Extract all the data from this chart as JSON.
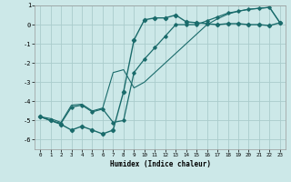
{
  "xlabel": "Humidex (Indice chaleur)",
  "bg_color": "#cce8e8",
  "grid_color": "#aacccc",
  "line_color": "#1a6b6b",
  "xlim": [
    -0.5,
    23.5
  ],
  "ylim": [
    -6.5,
    1.0
  ],
  "yticks": [
    1,
    0,
    -1,
    -2,
    -3,
    -4,
    -5,
    -6
  ],
  "xticks": [
    0,
    1,
    2,
    3,
    4,
    5,
    6,
    7,
    8,
    9,
    10,
    11,
    12,
    13,
    14,
    15,
    16,
    17,
    18,
    19,
    20,
    21,
    22,
    23
  ],
  "series1_x": [
    0,
    1,
    2,
    3,
    4,
    5,
    6,
    7,
    8,
    9,
    10,
    11,
    12,
    13,
    14,
    15,
    16,
    17,
    18,
    19,
    20,
    21,
    22,
    23
  ],
  "series1_y": [
    -4.8,
    -5.0,
    -5.2,
    -5.5,
    -5.3,
    -5.5,
    -5.7,
    -5.5,
    -3.5,
    -0.8,
    0.25,
    0.35,
    0.35,
    0.5,
    0.15,
    0.1,
    0.05,
    0.0,
    0.05,
    0.05,
    0.0,
    0.0,
    -0.05,
    0.1
  ],
  "series2_x": [
    0,
    1,
    2,
    3,
    4,
    5,
    6,
    7,
    8,
    9,
    10,
    11,
    12,
    13,
    14,
    15,
    16,
    17,
    18,
    19,
    20,
    21,
    22,
    23
  ],
  "series2_y": [
    -4.8,
    -5.0,
    -5.15,
    -4.3,
    -4.2,
    -4.55,
    -4.4,
    -5.1,
    -5.0,
    -2.5,
    -1.8,
    -1.2,
    -0.6,
    0.0,
    0.0,
    0.0,
    0.2,
    0.4,
    0.6,
    0.7,
    0.8,
    0.85,
    0.9,
    0.1
  ],
  "series3_x": [
    0,
    1,
    2,
    3,
    4,
    5,
    6,
    7,
    8,
    9,
    10,
    11,
    12,
    13,
    14,
    15,
    16,
    17,
    18,
    19,
    20,
    21,
    22,
    23
  ],
  "series3_y": [
    -4.8,
    -4.9,
    -5.1,
    -4.2,
    -4.15,
    -4.5,
    -4.35,
    -2.5,
    -2.35,
    -3.3,
    -3.0,
    -2.5,
    -2.0,
    -1.5,
    -1.0,
    -0.5,
    0.0,
    0.3,
    0.55,
    0.7,
    0.8,
    0.85,
    0.9,
    0.1
  ]
}
